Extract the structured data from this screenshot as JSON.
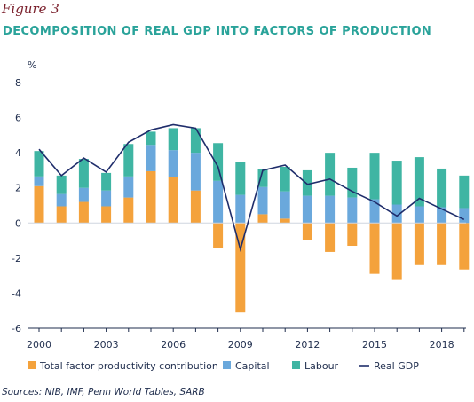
{
  "figure_label": "Figure 3",
  "source": "Sources: NIB, IMF, Penn World Tables, SARB",
  "colors": {
    "tfp": "#f4a23c",
    "capital": "#6aa8dc",
    "labour": "#3fb5a3",
    "gdp": "#1f2d6b",
    "title": "#2aa39a"
  },
  "chart_data": {
    "type": "bar",
    "title": "DECOMPOSITION OF REAL GDP INTO FACTORS OF PRODUCTION",
    "ylabel": "%",
    "xlabel": "",
    "stacked": true,
    "categories": [
      2000,
      2001,
      2002,
      2003,
      2004,
      2005,
      2006,
      2007,
      2008,
      2009,
      2010,
      2011,
      2012,
      2013,
      2014,
      2015,
      2016,
      2017,
      2018,
      2019
    ],
    "x_tick_labels": [
      "2000",
      "2003",
      "2006",
      "2009",
      "2012",
      "2015",
      "2018"
    ],
    "y_tick_labels": [
      "8",
      "6",
      "4",
      "2",
      "0",
      "-2",
      "-4",
      "-6"
    ],
    "ylim": [
      -6,
      8
    ],
    "series": [
      {
        "name": "Total factor productivity contribution",
        "kind": "bar",
        "values": [
          2.1,
          0.95,
          1.2,
          0.95,
          1.45,
          2.95,
          2.6,
          1.85,
          -1.45,
          -5.1,
          0.5,
          0.25,
          -0.95,
          -1.65,
          -1.3,
          -2.9,
          -3.2,
          -2.4,
          -2.4,
          -2.65
        ]
      },
      {
        "name": "Capital",
        "kind": "bar",
        "values": [
          0.55,
          0.7,
          0.8,
          0.9,
          1.2,
          1.5,
          1.55,
          2.15,
          2.4,
          1.6,
          1.55,
          1.55,
          1.55,
          1.55,
          1.45,
          1.35,
          1.05,
          0.95,
          0.9,
          0.85
        ]
      },
      {
        "name": "Labour",
        "kind": "bar",
        "values": [
          1.45,
          1.05,
          1.65,
          1.0,
          1.85,
          0.75,
          1.25,
          1.4,
          2.15,
          1.9,
          1.0,
          1.4,
          1.45,
          2.45,
          1.7,
          2.65,
          2.5,
          2.8,
          2.2,
          1.85
        ]
      },
      {
        "name": "Real GDP",
        "kind": "line",
        "values": [
          4.2,
          2.7,
          3.7,
          2.9,
          4.6,
          5.3,
          5.6,
          5.4,
          3.2,
          -1.5,
          3.0,
          3.3,
          2.2,
          2.5,
          1.8,
          1.2,
          0.4,
          1.4,
          0.8,
          0.2
        ]
      }
    ],
    "legend_position": "bottom",
    "grid": false
  }
}
